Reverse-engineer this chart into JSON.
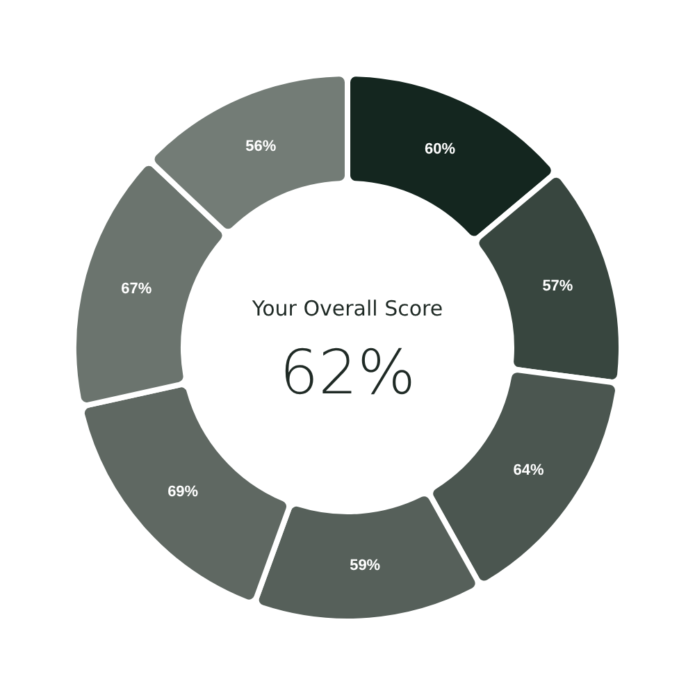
{
  "chart_data": {
    "type": "donut",
    "categories": [
      null,
      null,
      null,
      null,
      null,
      null,
      null
    ],
    "values": [
      60,
      57,
      64,
      59,
      69,
      67,
      56
    ],
    "value_labels": [
      "60%",
      "57%",
      "64%",
      "59%",
      "69%",
      "67%",
      "56%"
    ],
    "colors": [
      "#14261f",
      "#38463f",
      "#4b5650",
      "#56605a",
      "#5f6862",
      "#6b746e",
      "#737c76"
    ],
    "annotations": [
      "Your Overall Score",
      "62%"
    ]
  }
}
